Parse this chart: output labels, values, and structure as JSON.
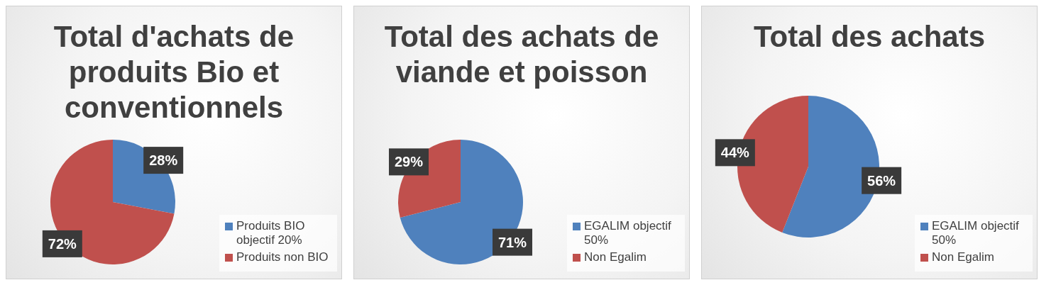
{
  "chart_data": [
    {
      "type": "pie",
      "title": "Total d'achats de produits Bio et conventionnels",
      "categories": [
        "Produits BIO objectif 20%",
        "Produits non BIO"
      ],
      "values": [
        28,
        72
      ],
      "colors": [
        "#4f81bd",
        "#c0504d"
      ],
      "value_labels": [
        "28%",
        "72%"
      ],
      "legend": "right"
    },
    {
      "type": "pie",
      "title": "Total des achats de viande et poisson",
      "categories": [
        "EGALIM objectif 50%",
        "Non Egalim"
      ],
      "values": [
        71,
        29
      ],
      "colors": [
        "#4f81bd",
        "#c0504d"
      ],
      "value_labels": [
        "71%",
        "29%"
      ],
      "legend": "right"
    },
    {
      "type": "pie",
      "title": "Total des achats",
      "categories": [
        "EGALIM objectif 50%",
        "Non Egalim"
      ],
      "values": [
        56,
        44
      ],
      "colors": [
        "#4f81bd",
        "#c0504d"
      ],
      "value_labels": [
        "56%",
        "44%"
      ],
      "legend": "right"
    }
  ]
}
